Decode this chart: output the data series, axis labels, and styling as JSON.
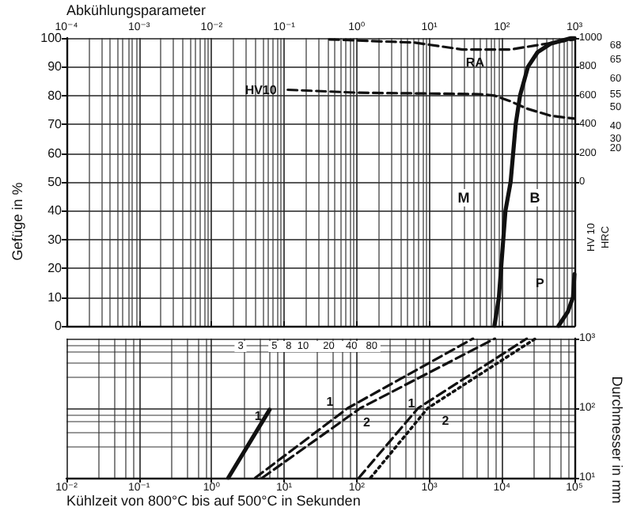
{
  "chart_data": [
    {
      "type": "line",
      "xlabel": "Abkühlungsparameter",
      "ylabel": "Gefüge in %",
      "y2label": "HV 10",
      "log": "x",
      "grid": true,
      "marker": "none",
      "xlim": [
        0.0001,
        1000
      ],
      "xticks": [
        {
          "value": 0.0001,
          "label": "10⁻⁴"
        },
        {
          "value": 0.001,
          "label": "10⁻³"
        },
        {
          "value": 0.01,
          "label": "10⁻²"
        },
        {
          "value": 0.1,
          "label": "10⁻¹"
        },
        {
          "value": 1,
          "label": "10⁰"
        },
        {
          "value": 10,
          "label": "10¹"
        },
        {
          "value": 100,
          "label": "10²"
        },
        {
          "value": 1000,
          "label": "10³"
        }
      ],
      "ylim": [
        0,
        100
      ],
      "yticks": [
        0,
        10,
        20,
        30,
        40,
        50,
        60,
        70,
        80,
        90,
        100
      ],
      "y2lim": [
        -1000,
        1000
      ],
      "y2ticks": [
        0,
        200,
        400,
        600,
        800,
        1000
      ],
      "annotations": [
        "M",
        "B",
        "68",
        "65",
        "60",
        "55",
        "50",
        "40",
        "30",
        "20",
        "HRC"
      ],
      "series": [
        {
          "name": "RA",
          "color": "#111111",
          "line_style": "dashed",
          "x": [
            0.42,
            6.2,
            28.6,
            132,
            363,
            1000
          ],
          "values": [
            99.5,
            98.4,
            96,
            96,
            97.8,
            99.5
          ]
        },
        {
          "name": "HV10",
          "color": "#111111",
          "line_style": "dashed",
          "axis": "y2",
          "x": [
            0.112,
            1,
            47.6,
            79,
            132,
            219,
            468,
            1000
          ],
          "values": [
            640,
            620,
            610,
            600,
            560,
            510,
            460,
            440
          ]
        },
        {
          "color": "#111111",
          "line_style": "solid",
          "x": [
            79,
            91,
            112,
            132,
            155,
            178,
            229,
            309,
            468,
            912,
            1000
          ],
          "values": [
            0,
            10,
            40,
            50,
            70,
            80,
            90,
            95,
            98,
            100,
            100
          ]
        },
        {
          "name": "P",
          "color": "#111111",
          "line_style": "solid",
          "x": [
            603,
            813,
            955,
            1000
          ],
          "values": [
            0,
            5,
            10,
            18
          ]
        }
      ]
    },
    {
      "type": "line",
      "xlabel": "Kühlzeit von 800°C bis auf 500°C in Sekunden",
      "ylabel": "Durchmesser in mm",
      "log": "xy",
      "grid": true,
      "marker": "none",
      "xlim": [
        0.01,
        100000
      ],
      "xticks": [
        {
          "value": 0.01,
          "label": "10⁻²"
        },
        {
          "value": 0.1,
          "label": "10⁻¹"
        },
        {
          "value": 1,
          "label": "10⁰"
        },
        {
          "value": 10,
          "label": "10¹"
        },
        {
          "value": 100,
          "label": "10²"
        },
        {
          "value": 1000,
          "label": "10³"
        },
        {
          "value": 10000,
          "label": "10⁴"
        },
        {
          "value": 100000,
          "label": "10⁵"
        }
      ],
      "ylim": [
        10,
        1000
      ],
      "yticks": [
        {
          "value": 10,
          "label": "10¹"
        },
        {
          "value": 100,
          "label": "10²"
        },
        {
          "value": 1000,
          "label": "10³"
        }
      ],
      "annotations": [
        "3",
        "5   8  10     20    40   80"
      ],
      "series": [
        {
          "name": "1",
          "color": "#111111",
          "line_style": "solid",
          "x": [
            1.7,
            6.3
          ],
          "values": [
            10,
            95
          ]
        },
        {
          "name": "1",
          "color": "#111111",
          "line_style": "dashed",
          "x": [
            4,
            75,
            4000
          ],
          "values": [
            10,
            100,
            1000
          ]
        },
        {
          "name": "2",
          "color": "#111111",
          "line_style": "dashed",
          "x": [
            5,
            112,
            8000
          ],
          "values": [
            10,
            100,
            1000
          ]
        },
        {
          "name": "1",
          "color": "#111111",
          "line_style": "dashed",
          "x": [
            107,
            700,
            22000
          ],
          "values": [
            10,
            100,
            1000
          ]
        },
        {
          "name": "2",
          "color": "#111111",
          "line_style": "dotted",
          "x": [
            155,
            950,
            29000
          ],
          "values": [
            10,
            100,
            1000
          ]
        }
      ]
    }
  ]
}
